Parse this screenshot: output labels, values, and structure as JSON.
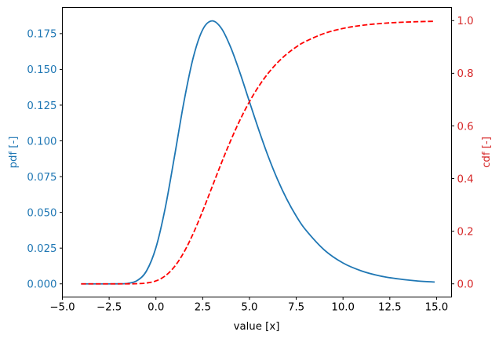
{
  "chart_data": {
    "type": "line",
    "title": "",
    "xlabel": "value [x]",
    "ylabel": "pdf [-]",
    "ylabel_right": "cdf [-]",
    "xlim": [
      -5.0,
      15.8
    ],
    "ylim": [
      -0.0092,
      0.1933
    ],
    "ylim_right": [
      -0.05,
      1.05
    ],
    "grid": false,
    "legend": null,
    "x_ticks": [
      "−5.0",
      "−2.5",
      "0.0",
      "2.5",
      "5.0",
      "7.5",
      "10.0",
      "12.5",
      "15.0"
    ],
    "x_tick_values": [
      -5.0,
      -2.5,
      0.0,
      2.5,
      5.0,
      7.5,
      10.0,
      12.5,
      15.0
    ],
    "y_ticks": [
      "0.000",
      "0.025",
      "0.050",
      "0.075",
      "0.100",
      "0.125",
      "0.150",
      "0.175"
    ],
    "y_tick_values": [
      0.0,
      0.025,
      0.05,
      0.075,
      0.1,
      0.125,
      0.15,
      0.175
    ],
    "y_ticks_right": [
      "0.0",
      "0.2",
      "0.4",
      "0.6",
      "0.8",
      "1.0"
    ],
    "y_tick_values_right": [
      0.0,
      0.2,
      0.4,
      0.6,
      0.8,
      1.0
    ],
    "x": [
      -4,
      -3,
      -2,
      -1.5,
      -1,
      -0.5,
      0,
      0.5,
      1,
      1.5,
      2,
      2.5,
      3,
      3.5,
      4,
      4.5,
      5,
      5.5,
      6,
      6.5,
      7,
      7.5,
      8,
      9,
      10,
      11,
      12,
      13,
      14,
      14.9
    ],
    "series": [
      {
        "name": "pdf",
        "axis": "left",
        "color": "#1f77b4",
        "style": "solid",
        "values": [
          0.0,
          0.0,
          3e-05,
          0.00036,
          0.0023,
          0.00912,
          0.02534,
          0.05321,
          0.08969,
          0.1275,
          0.1585,
          0.1778,
          0.1839,
          0.1787,
          0.1653,
          0.1473,
          0.1273,
          0.1076,
          0.0892,
          0.073,
          0.0591,
          0.0474,
          0.0378,
          0.0237,
          0.0146,
          0.009,
          0.0055,
          0.0034,
          0.002,
          0.0013
        ]
      },
      {
        "name": "cdf",
        "axis": "right",
        "color": "#ff0000",
        "style": "dashed",
        "values": [
          0.0,
          0.0,
          5e-06,
          7.6e-05,
          0.00062,
          0.00317,
          0.01131,
          0.03049,
          0.06599,
          0.1204,
          0.1923,
          0.2769,
          0.3679,
          0.459,
          0.5452,
          0.6235,
          0.6922,
          0.7509,
          0.8,
          0.8405,
          0.8734,
          0.9,
          0.9212,
          0.9514,
          0.9703,
          0.9819,
          0.989,
          0.9933,
          0.9959,
          0.9974
        ]
      }
    ],
    "colors": {
      "left_axis": "#1f77b4",
      "right_axis": "#d62728",
      "spine": "#000000"
    }
  }
}
